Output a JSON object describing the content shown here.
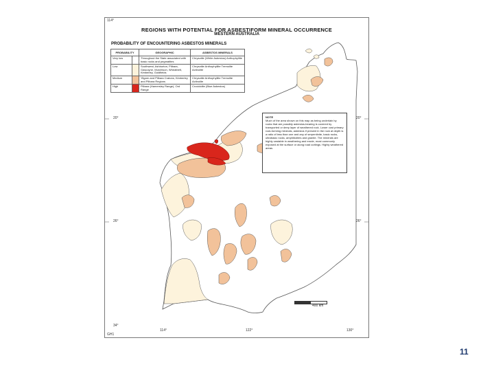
{
  "map": {
    "title": "REGIONS WITH POTENTIAL FOR ASBESTIFORM MINERAL OCCURRENCE",
    "subtitle": "WESTERN AUSTRALIA",
    "legend_heading": "PROBABILITY OF ENCOUNTERING ASBESTOS MINERALS",
    "legend_headers": [
      "PROBABILITY",
      "GEOGRAPHIC",
      "ASBESTOS MINERALS"
    ],
    "legend_rows": [
      {
        "probability": "Very low",
        "color": "#ffffff",
        "geographic": "Throughout the State associated with basic rocks and pegmatites",
        "minerals": "Chrysotile (White Asbestos) Anthophyllite"
      },
      {
        "probability": "Low",
        "color": "#fdf3dc",
        "geographic": "Southwest, Ashburton, Pilbara, Gascoyne, Murchison, Wheatbelt, Kimberley, Goldfields",
        "minerals": "Chrysotile Anthophyllite Tremolite Actinolite"
      },
      {
        "probability": "Medium",
        "color": "#f2c29a",
        "geographic": "Yilgarn and Pilbara Cratons, Kimberley and Pilbara Regions",
        "minerals": "Chrysotile Anthophyllite Tremolite Actinolite"
      },
      {
        "probability": "High",
        "color": "#d9261c",
        "geographic": "Pilbara (Hamersley Range), Ord Range",
        "minerals": "Crocidolite (Blue Asbestos)"
      }
    ],
    "note_heading": "NOTE",
    "note_text": "Much of the area shown on this map as being underlain by rocks that are possibly asbestos-bearing is covered by transported or deep layer of weathered rock. Lower cost primary rock-forming minerals, asbestos if present in the rock at depth is a ratio of less than one and any of serpentinite, basic rocks, ultrabasic rocks, amphibolites and granite. The minerals are highly unstable in weathering and erode, most commonly exposed at the surface or along road cuttings. Highly weathered areas.",
    "scale_label": "400 km",
    "coords": {
      "lon_top_left": "114°",
      "lon_bottom": [
        "114°",
        "122°",
        "130°"
      ],
      "lat_left": [
        "20°",
        "26°",
        "34°"
      ],
      "lat_right": [
        "20°",
        "26°"
      ],
      "corner_code": "GH1"
    },
    "colors": {
      "very_low": "#ffffff",
      "low": "#fdf3dc",
      "medium": "#f2c29a",
      "high": "#d9261c",
      "outline": "#555555"
    }
  },
  "page": {
    "number": "11"
  }
}
